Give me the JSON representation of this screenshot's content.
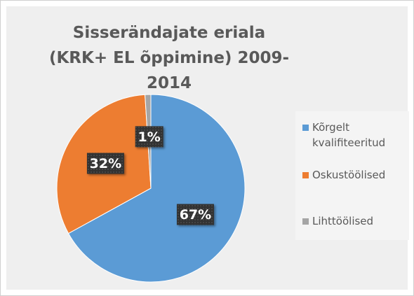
{
  "chart_data": {
    "type": "pie",
    "title": "Sisserändajate eriala (KRK+ EL õppimine) 2009-2014",
    "categories": [
      "Kõrgelt kvalifiteeritud",
      "Oskustöölised",
      "Lihttöölised"
    ],
    "values": [
      67,
      32,
      1
    ],
    "value_labels": [
      "67%",
      "32%",
      "1%"
    ],
    "colors": [
      "#5b9bd5",
      "#ed7d31",
      "#a5a5a5"
    ],
    "legend": "right"
  }
}
